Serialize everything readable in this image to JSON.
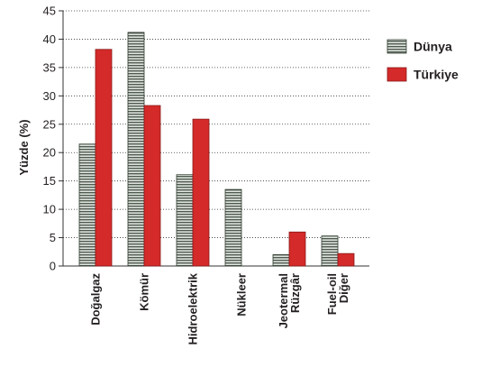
{
  "chart_data": {
    "type": "bar",
    "ylabel": "Yüzde (%)",
    "xlabel": "",
    "ylim": [
      0,
      45
    ],
    "yticks": [
      0,
      5,
      10,
      15,
      20,
      25,
      30,
      35,
      40,
      45
    ],
    "grid": "horizontal dotted",
    "legend_position": "top-right",
    "categories": [
      [
        "Doğalgaz"
      ],
      [
        "Kömür"
      ],
      [
        "Hidroelektrik"
      ],
      [
        "Nükleer"
      ],
      [
        "Jeotermal",
        "Rüzgâr"
      ],
      [
        "Fuel-oil",
        "Diğer"
      ]
    ],
    "series": [
      {
        "name": "Dünya",
        "color": "#6b7b6b",
        "pattern": "horizontal-stripes",
        "values": [
          21.5,
          41.2,
          16.1,
          13.5,
          2.0,
          5.3
        ]
      },
      {
        "name": "Türkiye",
        "color": "#d42a2a",
        "pattern": "solid",
        "values": [
          38.2,
          28.3,
          25.9,
          0,
          6.0,
          2.2
        ]
      }
    ]
  }
}
